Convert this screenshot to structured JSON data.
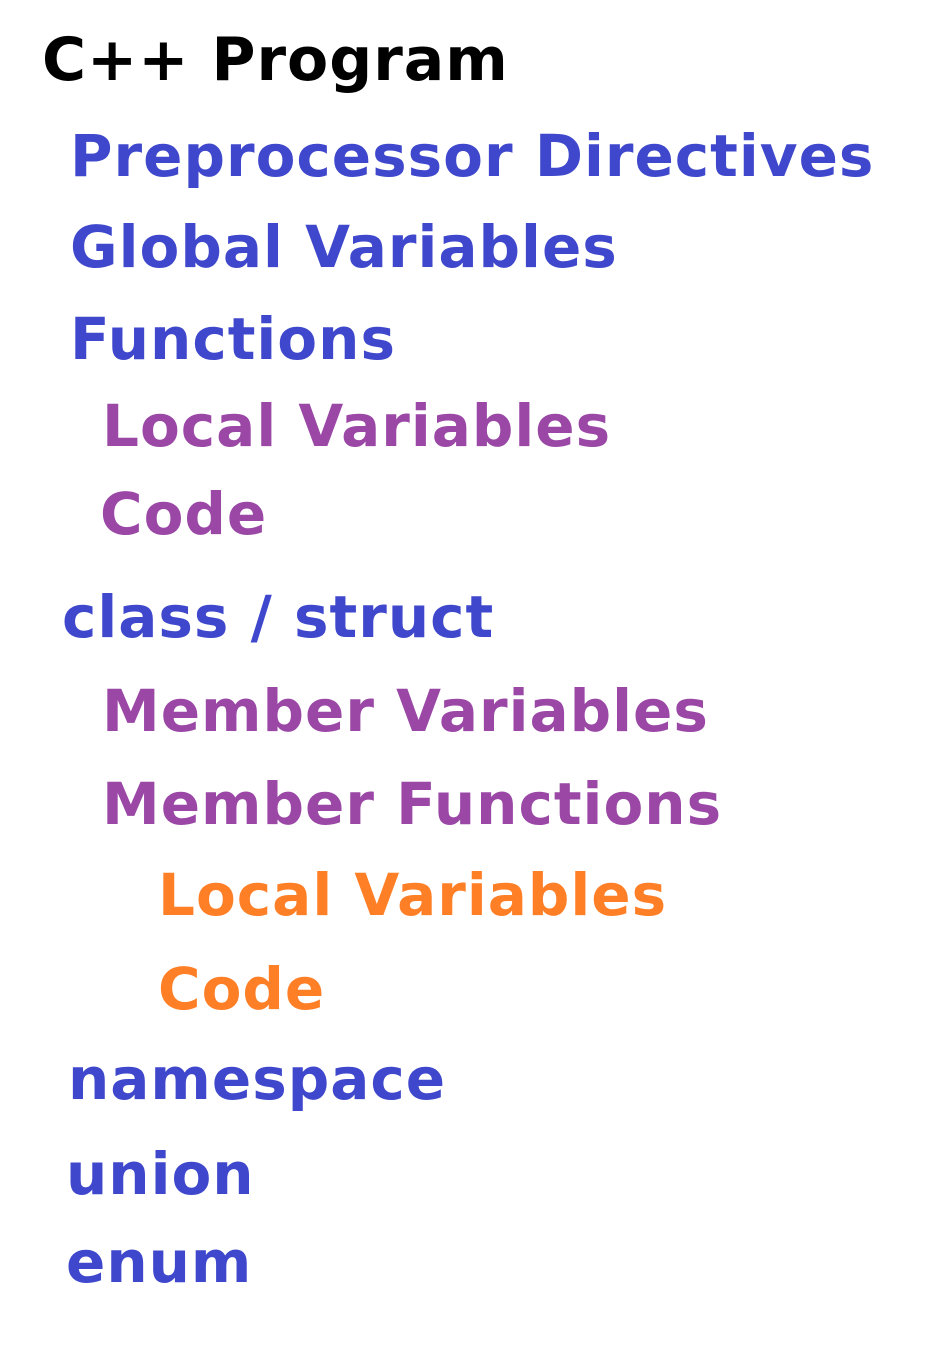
{
  "title": "C++ Program",
  "colors": {
    "heading": "#000000",
    "level1": "#3f48cc",
    "level2": "#9a47a6",
    "level3": "#ff7f27"
  },
  "items": [
    "Preprocessor Directives",
    "Global Variables",
    "Functions",
    "Local Variables",
    "Code",
    "class / struct",
    "Member Variables",
    "Member Functions",
    "Local Variables",
    "Code",
    "namespace",
    "union",
    "enum"
  ]
}
